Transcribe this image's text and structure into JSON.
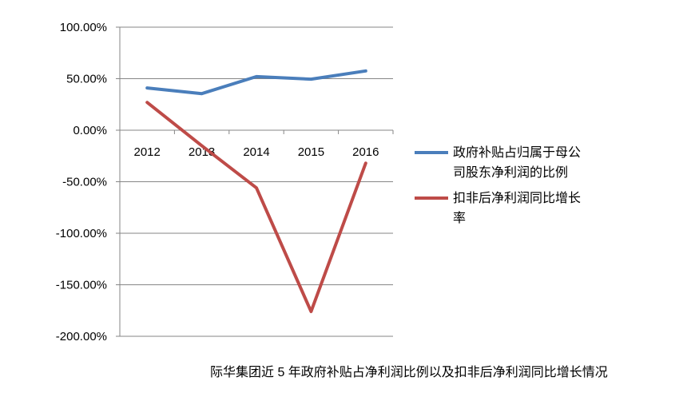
{
  "chart_data": {
    "type": "line",
    "title": "",
    "xlabel": "",
    "ylabel": "",
    "categories": [
      "2012",
      "2013",
      "2014",
      "2015",
      "2016"
    ],
    "ylim": [
      -200,
      100
    ],
    "yticks": [
      100,
      50,
      0,
      -50,
      -100,
      -150,
      -200
    ],
    "ytick_labels": [
      "100.00%",
      "50.00%",
      "0.00%",
      "-50.00%",
      "-100.00%",
      "-150.00%",
      "-200.00%"
    ],
    "grid": true,
    "legend_position": "right",
    "series": [
      {
        "name": "政府补贴占归属于母公司股东净利润的比例",
        "legend_lines": [
          "政府补贴占归属于母公",
          "司股东净利润的比例"
        ],
        "color": "#4a7ebb",
        "values": [
          41,
          35.5,
          52,
          49.5,
          57.5
        ]
      },
      {
        "name": "扣非后净利润同比增长率",
        "legend_lines": [
          "扣非后净利润同比增长",
          "率"
        ],
        "color": "#be4b48",
        "values": [
          27,
          -15,
          -56,
          -176,
          -32
        ]
      }
    ]
  },
  "caption": "际华集团近 5 年政府补贴占净利润比例以及扣非后净利润同比增长情况"
}
